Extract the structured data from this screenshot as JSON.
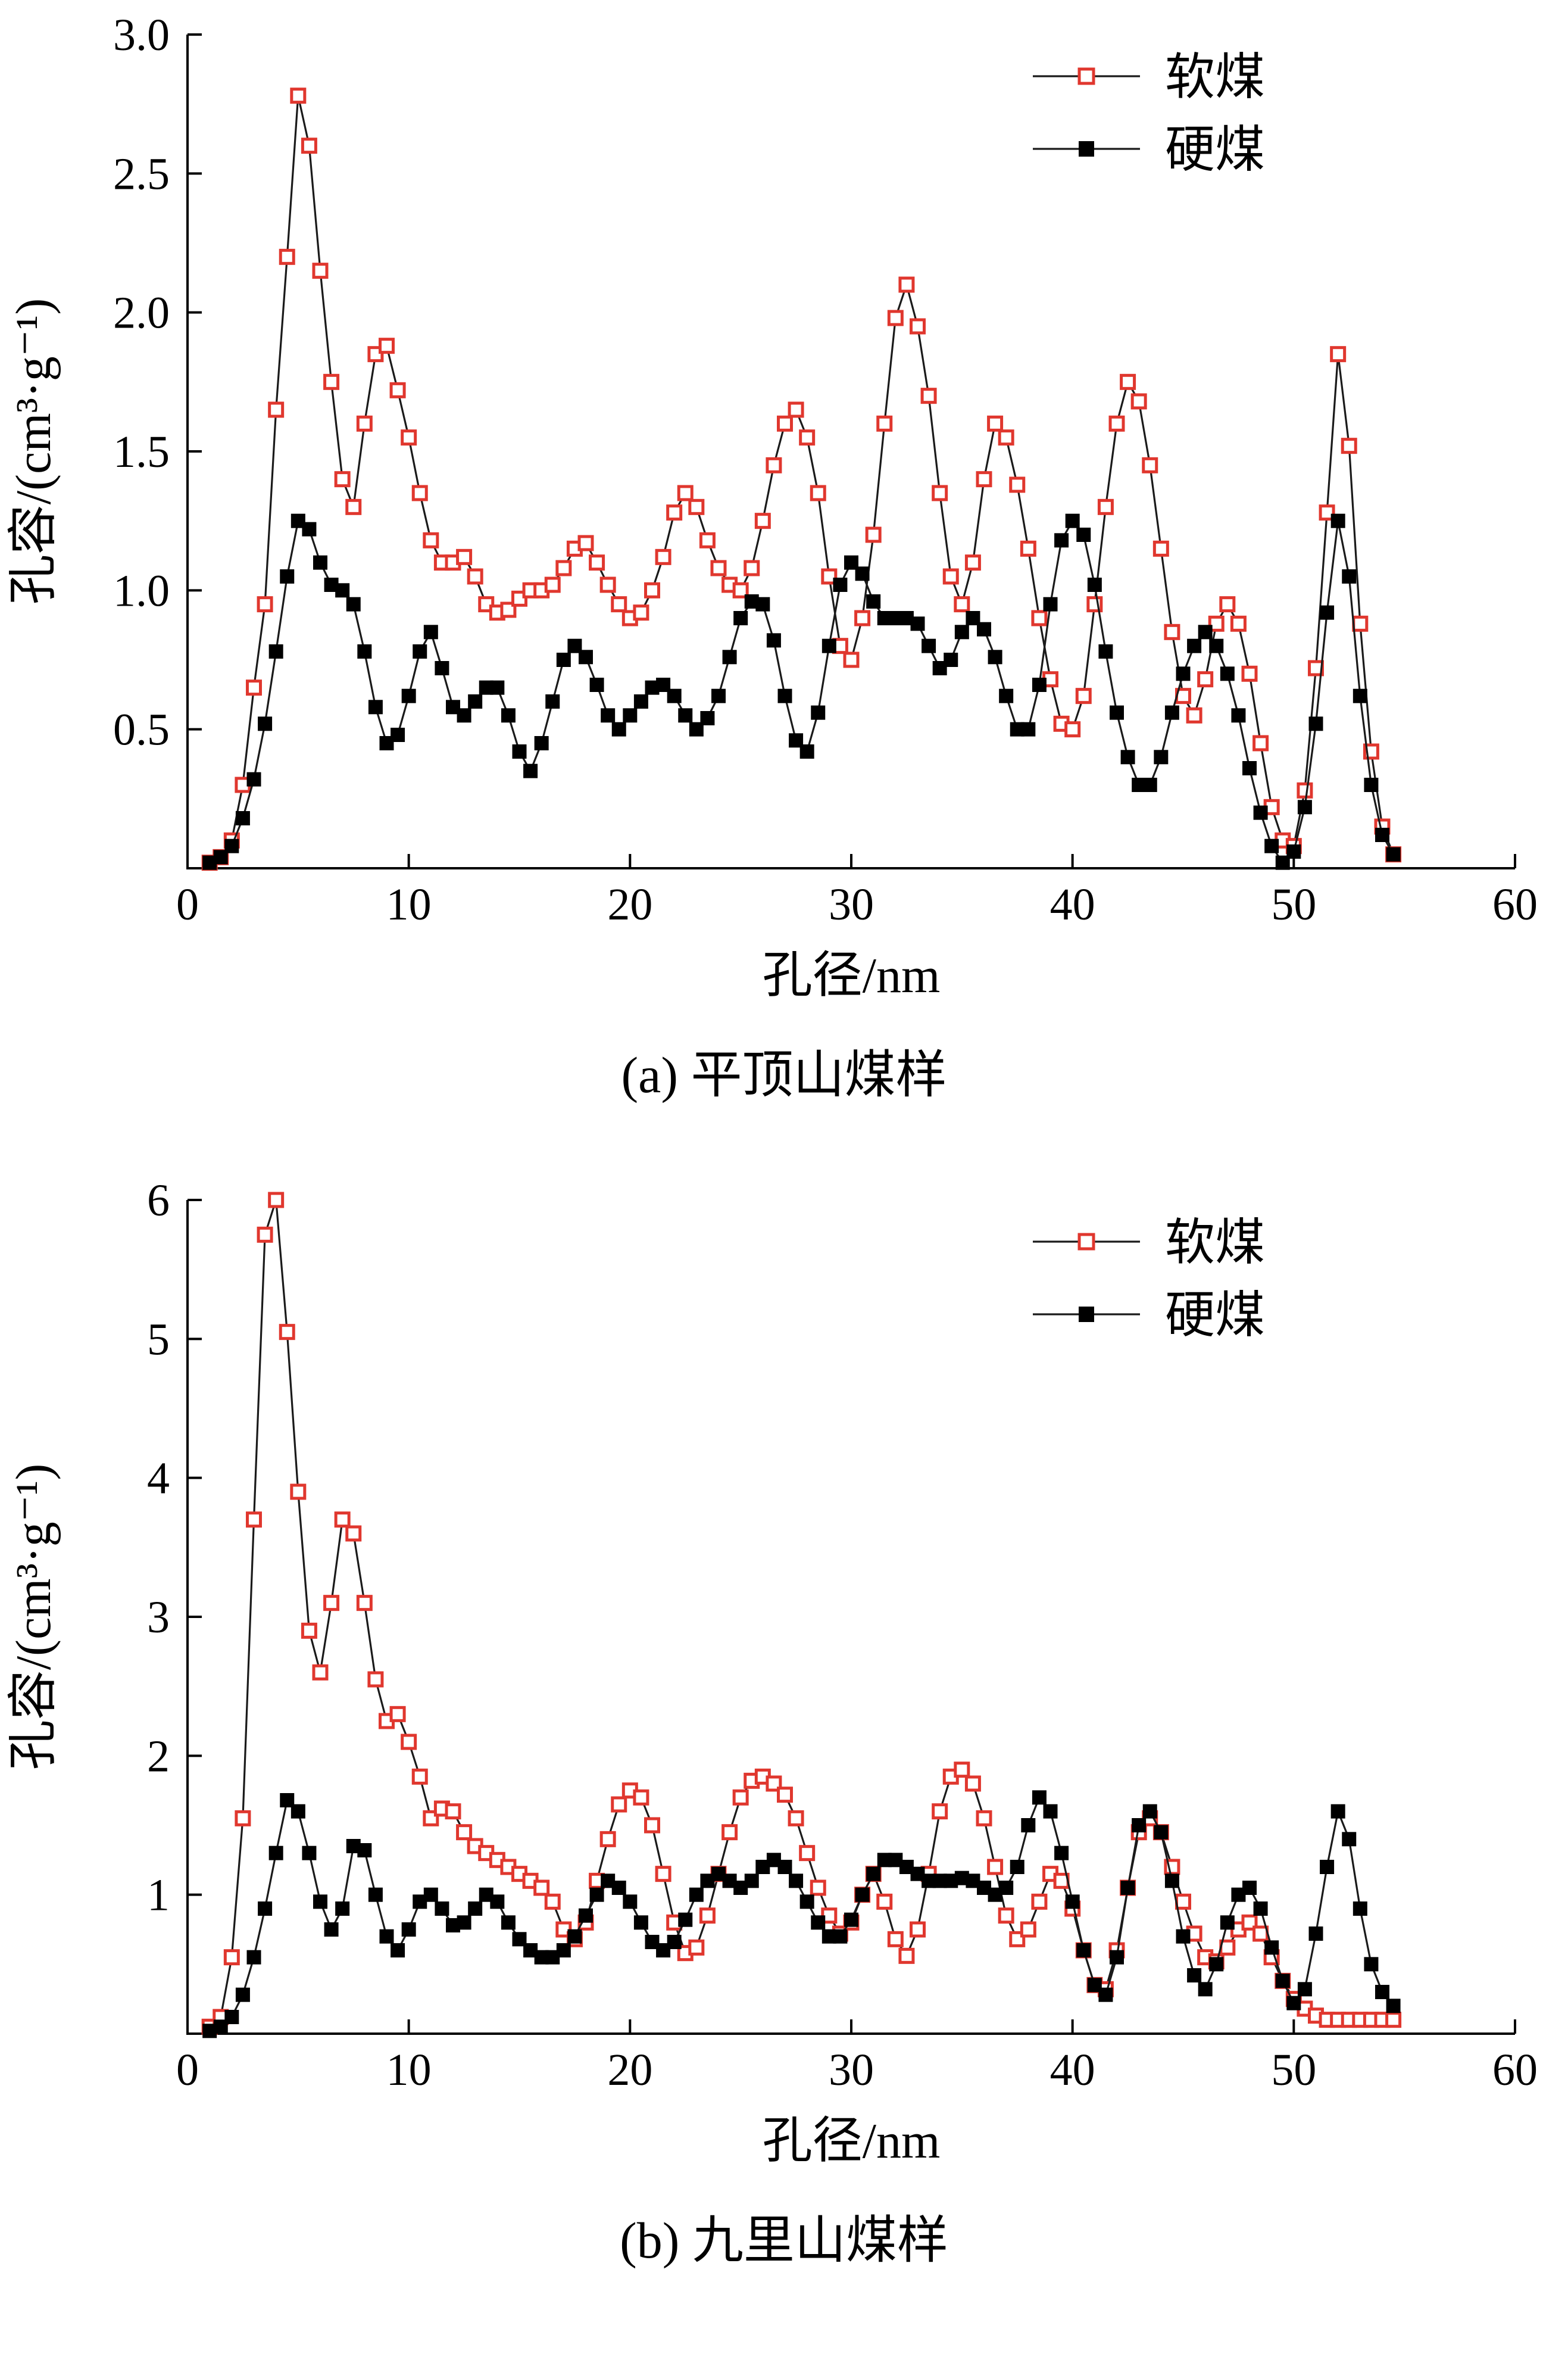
{
  "page": {
    "background": "#ffffff"
  },
  "colors": {
    "soft_coal": "#e0372e",
    "hard_coal": "#000000",
    "line": "#1a1a1a",
    "axis": "#000000"
  },
  "chart_data": [
    {
      "type": "line",
      "title": "(a) 平顶山煤样",
      "xlabel": "孔径/nm",
      "ylabel": "孔容/(cm³·g⁻¹)",
      "xlim": [
        0,
        60
      ],
      "ylim": [
        0,
        3.0
      ],
      "grid": false,
      "legend_position": "top-right",
      "xticks": [
        0,
        10,
        20,
        30,
        40,
        50,
        60
      ],
      "xtick_labels": [
        "0",
        "10",
        "20",
        "30",
        "40",
        "50",
        "60"
      ],
      "yticks": [
        0,
        0.5,
        1.0,
        1.5,
        2.0,
        2.5,
        3.0
      ],
      "ytick_labels": [
        "",
        "0.5",
        "1.0",
        "1.5",
        "2.0",
        "2.5",
        "3.0"
      ],
      "x": [
        1,
        1.5,
        2,
        2.5,
        3,
        3.5,
        4,
        4.5,
        5,
        5.5,
        6,
        6.5,
        7,
        7.5,
        8,
        8.5,
        9,
        9.5,
        10,
        10.5,
        11,
        11.5,
        12,
        12.5,
        13,
        13.5,
        14,
        14.5,
        15,
        15.5,
        16,
        16.5,
        17,
        17.5,
        18,
        18.5,
        19,
        19.5,
        20,
        20.5,
        21,
        21.5,
        22,
        22.5,
        23,
        23.5,
        24,
        24.5,
        25,
        25.5,
        26,
        26.5,
        27,
        27.5,
        28,
        28.5,
        29,
        29.5,
        30,
        30.5,
        31,
        31.5,
        32,
        32.5,
        33,
        33.5,
        34,
        34.5,
        35,
        35.5,
        36,
        36.5,
        37,
        37.5,
        38,
        38.5,
        39,
        39.5,
        40,
        40.5,
        41,
        41.5,
        42,
        42.5,
        43,
        43.5,
        44,
        44.5,
        45,
        45.5,
        46,
        46.5,
        47,
        47.5,
        48,
        48.5,
        49,
        49.5,
        50,
        50.5,
        51,
        51.5,
        52,
        52.5,
        53,
        53.5,
        54,
        54.5
      ],
      "series": [
        {
          "name": "软煤",
          "marker": "open-square",
          "color": "#e0372e",
          "line_color": "#1a1a1a",
          "values": [
            0.02,
            0.04,
            0.1,
            0.3,
            0.65,
            0.95,
            1.65,
            2.2,
            2.78,
            2.6,
            2.15,
            1.75,
            1.4,
            1.3,
            1.6,
            1.85,
            1.88,
            1.72,
            1.55,
            1.35,
            1.18,
            1.1,
            1.1,
            1.12,
            1.05,
            0.95,
            0.92,
            0.93,
            0.97,
            1,
            1,
            1.02,
            1.08,
            1.15,
            1.17,
            1.1,
            1.02,
            0.95,
            0.9,
            0.92,
            1,
            1.12,
            1.28,
            1.35,
            1.3,
            1.18,
            1.08,
            1.02,
            1,
            1.08,
            1.25,
            1.45,
            1.6,
            1.65,
            1.55,
            1.35,
            1.05,
            0.8,
            0.75,
            0.9,
            1.2,
            1.6,
            1.98,
            2.1,
            1.95,
            1.7,
            1.35,
            1.05,
            0.95,
            1.1,
            1.4,
            1.6,
            1.55,
            1.38,
            1.15,
            0.9,
            0.68,
            0.52,
            0.5,
            0.62,
            0.95,
            1.3,
            1.6,
            1.75,
            1.68,
            1.45,
            1.15,
            0.85,
            0.62,
            0.55,
            0.68,
            0.88,
            0.95,
            0.88,
            0.7,
            0.45,
            0.22,
            0.1,
            0.08,
            0.28,
            0.72,
            1.28,
            1.85,
            1.52,
            0.88,
            0.42,
            0.15,
            0.05
          ]
        },
        {
          "name": "硬煤",
          "marker": "filled-square",
          "color": "#000000",
          "line_color": "#1a1a1a",
          "values": [
            0.02,
            0.04,
            0.08,
            0.18,
            0.32,
            0.52,
            0.78,
            1.05,
            1.25,
            1.22,
            1.1,
            1.02,
            1,
            0.95,
            0.78,
            0.58,
            0.45,
            0.48,
            0.62,
            0.78,
            0.85,
            0.72,
            0.58,
            0.55,
            0.6,
            0.65,
            0.65,
            0.55,
            0.42,
            0.35,
            0.45,
            0.6,
            0.75,
            0.8,
            0.76,
            0.66,
            0.55,
            0.5,
            0.55,
            0.6,
            0.65,
            0.66,
            0.62,
            0.55,
            0.5,
            0.54,
            0.62,
            0.76,
            0.9,
            0.96,
            0.95,
            0.82,
            0.62,
            0.46,
            0.42,
            0.56,
            0.8,
            1.02,
            1.1,
            1.06,
            0.96,
            0.9,
            0.9,
            0.9,
            0.88,
            0.8,
            0.72,
            0.75,
            0.85,
            0.9,
            0.86,
            0.76,
            0.62,
            0.5,
            0.5,
            0.66,
            0.95,
            1.18,
            1.25,
            1.2,
            1.02,
            0.78,
            0.56,
            0.4,
            0.3,
            0.3,
            0.4,
            0.56,
            0.7,
            0.8,
            0.85,
            0.8,
            0.7,
            0.55,
            0.36,
            0.2,
            0.08,
            0.02,
            0.06,
            0.22,
            0.52,
            0.92,
            1.25,
            1.05,
            0.62,
            0.3,
            0.12,
            0.05
          ]
        }
      ]
    },
    {
      "type": "line",
      "title": "(b) 九里山煤样",
      "xlabel": "孔径/nm",
      "ylabel": "孔容/(cm³·g⁻¹)",
      "xlim": [
        0,
        60
      ],
      "ylim": [
        0,
        6
      ],
      "grid": false,
      "legend_position": "top-right",
      "xticks": [
        0,
        10,
        20,
        30,
        40,
        50,
        60
      ],
      "xtick_labels": [
        "0",
        "10",
        "20",
        "30",
        "40",
        "50",
        "60"
      ],
      "yticks": [
        0,
        1,
        2,
        3,
        4,
        5,
        6
      ],
      "ytick_labels": [
        "",
        "1",
        "2",
        "3",
        "4",
        "5",
        "6"
      ],
      "x": [
        1,
        1.5,
        2,
        2.5,
        3,
        3.5,
        4,
        4.5,
        5,
        5.5,
        6,
        6.5,
        7,
        7.5,
        8,
        8.5,
        9,
        9.5,
        10,
        10.5,
        11,
        11.5,
        12,
        12.5,
        13,
        13.5,
        14,
        14.5,
        15,
        15.5,
        16,
        16.5,
        17,
        17.5,
        18,
        18.5,
        19,
        19.5,
        20,
        20.5,
        21,
        21.5,
        22,
        22.5,
        23,
        23.5,
        24,
        24.5,
        25,
        25.5,
        26,
        26.5,
        27,
        27.5,
        28,
        28.5,
        29,
        29.5,
        30,
        30.5,
        31,
        31.5,
        32,
        32.5,
        33,
        33.5,
        34,
        34.5,
        35,
        35.5,
        36,
        36.5,
        37,
        37.5,
        38,
        38.5,
        39,
        39.5,
        40,
        40.5,
        41,
        41.5,
        42,
        42.5,
        43,
        43.5,
        44,
        44.5,
        45,
        45.5,
        46,
        46.5,
        47,
        47.5,
        48,
        48.5,
        49,
        49.5,
        50,
        50.5,
        51,
        51.5,
        52,
        52.5,
        53,
        53.5,
        54,
        54.5
      ],
      "series": [
        {
          "name": "软煤",
          "marker": "open-square",
          "color": "#e0372e",
          "line_color": "#1a1a1a",
          "values": [
            0.05,
            0.12,
            0.55,
            1.55,
            3.7,
            5.75,
            6,
            5.05,
            3.9,
            2.9,
            2.6,
            3.1,
            3.7,
            3.6,
            3.1,
            2.55,
            2.25,
            2.3,
            2.1,
            1.85,
            1.55,
            1.62,
            1.6,
            1.45,
            1.35,
            1.3,
            1.25,
            1.2,
            1.15,
            1.1,
            1.05,
            0.95,
            0.75,
            0.68,
            0.8,
            1.1,
            1.4,
            1.65,
            1.75,
            1.7,
            1.5,
            1.15,
            0.8,
            0.58,
            0.62,
            0.85,
            1.15,
            1.45,
            1.7,
            1.82,
            1.85,
            1.8,
            1.72,
            1.55,
            1.3,
            1.05,
            0.85,
            0.72,
            0.8,
            1,
            1.15,
            0.95,
            0.68,
            0.56,
            0.75,
            1.15,
            1.6,
            1.85,
            1.9,
            1.8,
            1.55,
            1.2,
            0.85,
            0.68,
            0.75,
            0.95,
            1.15,
            1.1,
            0.9,
            0.6,
            0.35,
            0.32,
            0.6,
            1.05,
            1.45,
            1.55,
            1.45,
            1.2,
            0.95,
            0.72,
            0.55,
            0.52,
            0.62,
            0.75,
            0.8,
            0.72,
            0.55,
            0.38,
            0.25,
            0.18,
            0.13,
            0.1,
            0.1,
            0.1,
            0.1,
            0.1,
            0.1,
            0.1
          ]
        },
        {
          "name": "硬煤",
          "marker": "filled-square",
          "color": "#000000",
          "line_color": "#1a1a1a",
          "values": [
            0.02,
            0.05,
            0.12,
            0.28,
            0.55,
            0.9,
            1.3,
            1.68,
            1.6,
            1.3,
            0.95,
            0.75,
            0.9,
            1.35,
            1.32,
            1,
            0.7,
            0.6,
            0.75,
            0.95,
            1,
            0.9,
            0.78,
            0.8,
            0.9,
            1,
            0.95,
            0.8,
            0.68,
            0.6,
            0.55,
            0.55,
            0.6,
            0.7,
            0.85,
            1,
            1.1,
            1.05,
            0.95,
            0.8,
            0.66,
            0.6,
            0.66,
            0.82,
            1,
            1.1,
            1.15,
            1.1,
            1.05,
            1.1,
            1.2,
            1.25,
            1.2,
            1.1,
            0.95,
            0.8,
            0.7,
            0.7,
            0.82,
            1,
            1.15,
            1.25,
            1.25,
            1.2,
            1.15,
            1.1,
            1.1,
            1.1,
            1.12,
            1.1,
            1.05,
            1,
            1.05,
            1.2,
            1.5,
            1.7,
            1.6,
            1.3,
            0.95,
            0.6,
            0.35,
            0.28,
            0.55,
            1.05,
            1.5,
            1.6,
            1.45,
            1.1,
            0.7,
            0.42,
            0.32,
            0.5,
            0.8,
            1,
            1.05,
            0.9,
            0.62,
            0.38,
            0.22,
            0.32,
            0.72,
            1.2,
            1.6,
            1.4,
            0.9,
            0.5,
            0.3,
            0.2
          ]
        }
      ]
    }
  ]
}
